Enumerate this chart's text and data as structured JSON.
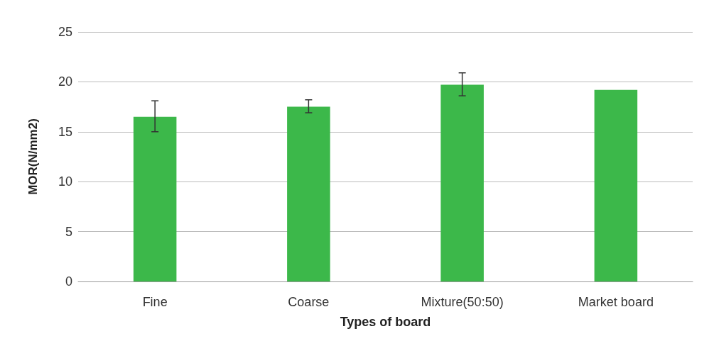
{
  "chart_data": {
    "type": "bar",
    "xlabel": "Types of board",
    "ylabel": "MOR(N/mm2)",
    "categories": [
      "Fine",
      "Coarse",
      "Mixture(50:50)",
      "Market board"
    ],
    "values": [
      16.5,
      17.5,
      19.7,
      19.2
    ],
    "color": "#3cb84a",
    "errors": [
      [
        15.0,
        18.1
      ],
      [
        16.9,
        18.2
      ],
      [
        18.6,
        20.9
      ],
      null
    ],
    "ylim": [
      0,
      25
    ],
    "yticks": [
      0,
      5,
      10,
      15,
      20,
      25
    ],
    "grid": "y"
  }
}
